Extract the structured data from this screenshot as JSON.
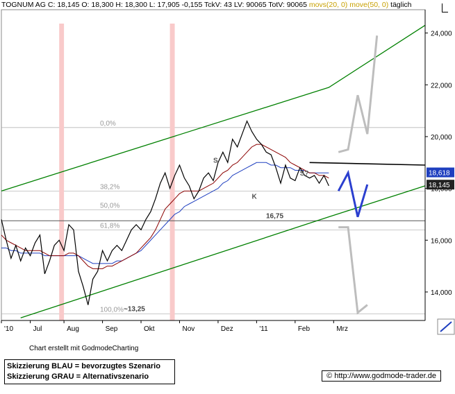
{
  "header": {
    "main": "TOGNUM AG C: 18,145 O: 18,300 H: 18,300 L: 17,905 -0,155 TckV: 43 LV: 90065 TotV: 90065",
    "ma20": "movs(20, 0)",
    "ma50": "move(50, 0)",
    "period": "täglich"
  },
  "footer": {
    "credit": "Chart erstellt mit GodmodeCharting",
    "legend_blue": "Skizzierung BLAU = bevorzugtes Szenario",
    "legend_grey": "Skizzierung GRAU = Alternativszenario",
    "url": "© http://www.godmode-trader.de"
  },
  "colors": {
    "price": "#000000",
    "ma20": "#8b0000",
    "ma50": "#2040c0",
    "channel": "#008000",
    "scenario_blue": "#2b3fcf",
    "scenario_grey": "#bdbdbd",
    "highlight": "#f9caca",
    "fib": "#aaaaaa"
  },
  "chart_data": {
    "type": "line",
    "x_tick_labels": [
      "'10",
      "Jul",
      "Aug",
      "Sep",
      "Okt",
      "Nov",
      "Dez",
      "'11",
      "Feb",
      "Mrz"
    ],
    "y_tick_labels": [
      "14,000",
      "16,000",
      "18,000",
      "20,000",
      "22,000",
      "24,000"
    ],
    "ylim": [
      12.9,
      24.9
    ],
    "last_price_labels": [
      "18,618",
      "18,145"
    ],
    "fib_levels": [
      {
        "label": "0,0%",
        "value": 20.35
      },
      {
        "label": "38,2%",
        "value": 17.9
      },
      {
        "label": "50,0%",
        "value": 17.17
      },
      {
        "label": "61,8%",
        "value": 16.4
      },
      {
        "label": "100,0%",
        "value": 13.15
      }
    ],
    "annotations": [
      "16,75",
      "~13,25",
      "S",
      "S?",
      "K"
    ],
    "price_series": [
      16.8,
      16.0,
      15.3,
      15.8,
      15.2,
      15.7,
      15.4,
      15.9,
      16.2,
      14.7,
      15.2,
      15.8,
      16.0,
      15.6,
      16.6,
      16.4,
      14.8,
      14.2,
      13.5,
      14.5,
      14.8,
      15.6,
      15.2,
      15.6,
      15.8,
      15.6,
      16.0,
      16.4,
      16.6,
      16.4,
      16.8,
      17.1,
      17.6,
      18.2,
      18.6,
      18.0,
      18.5,
      18.9,
      18.4,
      18.1,
      17.6,
      17.9,
      18.4,
      18.6,
      18.3,
      19.0,
      19.4,
      19.0,
      19.9,
      19.6,
      20.1,
      20.6,
      20.2,
      19.9,
      19.7,
      19.4,
      19.3,
      18.8,
      18.2,
      18.9,
      18.4,
      18.3,
      18.8,
      18.5,
      18.4,
      18.5,
      18.2,
      18.5,
      18.1
    ],
    "ma20_series": [
      16.2,
      16.0,
      15.9,
      15.8,
      15.7,
      15.6,
      15.6,
      15.6,
      15.6,
      15.5,
      15.4,
      15.4,
      15.4,
      15.4,
      15.5,
      15.5,
      15.4,
      15.2,
      15.0,
      14.9,
      14.9,
      14.9,
      15.0,
      15.0,
      15.1,
      15.2,
      15.3,
      15.4,
      15.5,
      15.7,
      15.9,
      16.1,
      16.4,
      16.8,
      17.2,
      17.4,
      17.6,
      17.8,
      17.9,
      17.9,
      17.9,
      17.9,
      18.0,
      18.1,
      18.2,
      18.4,
      18.6,
      18.7,
      18.9,
      19.0,
      19.2,
      19.4,
      19.6,
      19.7,
      19.7,
      19.6,
      19.5,
      19.4,
      19.3,
      19.2,
      19.0,
      18.9,
      18.8,
      18.7,
      18.6,
      18.6,
      18.5,
      18.5,
      18.4
    ],
    "ma50_series": [
      15.7,
      15.7,
      15.6,
      15.6,
      15.5,
      15.5,
      15.5,
      15.5,
      15.5,
      15.4,
      15.4,
      15.4,
      15.4,
      15.4,
      15.4,
      15.4,
      15.4,
      15.3,
      15.2,
      15.1,
      15.1,
      15.1,
      15.1,
      15.1,
      15.2,
      15.2,
      15.3,
      15.4,
      15.5,
      15.6,
      15.8,
      16.0,
      16.2,
      16.4,
      16.6,
      16.8,
      17.0,
      17.1,
      17.3,
      17.4,
      17.5,
      17.6,
      17.7,
      17.8,
      17.9,
      18.0,
      18.2,
      18.3,
      18.5,
      18.6,
      18.7,
      18.8,
      18.9,
      19.0,
      19.0,
      19.0,
      18.9,
      18.9,
      18.8,
      18.8,
      18.8,
      18.7,
      18.7,
      18.7,
      18.6,
      18.6,
      18.6,
      18.6,
      18.6
    ],
    "channel_upper": [
      [
        0,
        17.9
      ],
      [
        68,
        21.9
      ],
      [
        88,
        24.3
      ]
    ],
    "channel_lower": [
      [
        4,
        13.0
      ],
      [
        68,
        16.9
      ],
      [
        88,
        18.1
      ]
    ],
    "horizontal_16_75": 16.75,
    "resistance_line": [
      [
        64,
        19.0
      ],
      [
        88,
        18.9
      ]
    ],
    "scenario_blue": [
      [
        70,
        17.9
      ],
      [
        72,
        18.6
      ],
      [
        74,
        16.9
      ],
      [
        76,
        18.15
      ]
    ],
    "scenario_grey": [
      [
        70,
        19.4
      ],
      [
        72,
        19.5
      ],
      [
        74,
        21.6
      ],
      [
        76,
        20.1
      ],
      [
        78,
        23.9
      ]
    ],
    "scenario_grey_down": [
      [
        70,
        16.5
      ],
      [
        72,
        16.5
      ],
      [
        74,
        13.2
      ],
      [
        76,
        13.5
      ]
    ],
    "highlight_ranges": [
      [
        12,
        13
      ],
      [
        35,
        36
      ]
    ]
  }
}
